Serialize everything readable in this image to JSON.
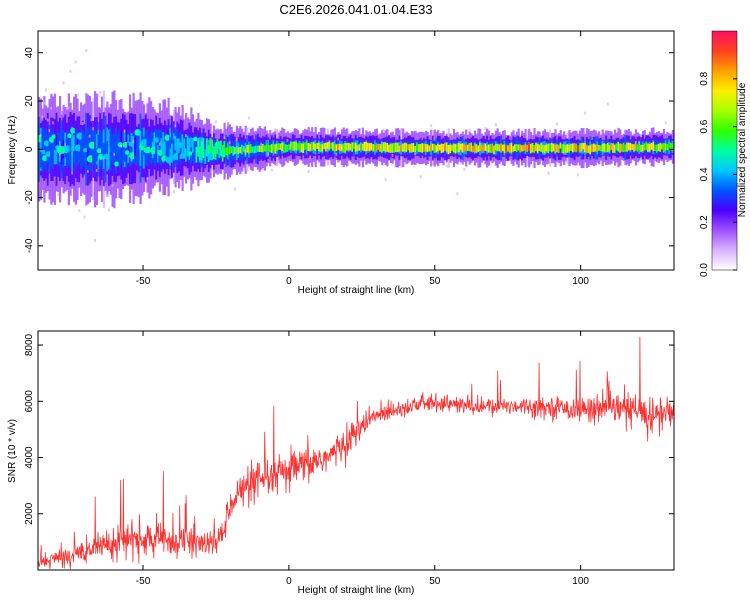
{
  "page": {
    "title": "C2E6.2026.041.01.04.E33"
  },
  "chart_data": [
    {
      "type": "heatmap",
      "title": "C2E6.2026.041.01.04.E33",
      "xlabel": "Height of straight line (km)",
      "ylabel": "Frequency (Hz)",
      "xlim": [
        -86,
        132
      ],
      "ylim": [
        -50,
        49
      ],
      "xticks": [
        -50,
        0,
        50,
        100
      ],
      "yticks": [
        -40,
        -20,
        0,
        20,
        40
      ],
      "grid": false,
      "colorbar": {
        "label": "Normalized spectral amplitude",
        "range": [
          0,
          1
        ],
        "ticks": [
          "0.0",
          "0.2",
          "0.4",
          "0.6",
          "0.8"
        ],
        "colors": [
          "#ffffff",
          "#d9b3ff",
          "#a050ff",
          "#4a00ff",
          "#0055ff",
          "#00c8ff",
          "#00ffa0",
          "#30ff00",
          "#a8ff00",
          "#ffee00",
          "#ffa000",
          "#ff4020",
          "#ff1060"
        ]
      },
      "description_points": [
        {
          "x": -80,
          "f_center": 0,
          "spread": 6,
          "amplitude": 0.35
        },
        {
          "x": -60,
          "f_center": 0,
          "spread": 6,
          "amplitude": 0.35
        },
        {
          "x": -40,
          "f_center": 1,
          "spread": 5,
          "amplitude": 0.4
        },
        {
          "x": -25,
          "f_center": -1,
          "spread": 3,
          "amplitude": 0.55
        },
        {
          "x": 0,
          "f_center": 1,
          "spread": 2,
          "amplitude": 0.7
        },
        {
          "x": 50,
          "f_center": 0.5,
          "spread": 2,
          "amplitude": 0.8
        },
        {
          "x": 100,
          "f_center": 0.5,
          "spread": 2,
          "amplitude": 0.8
        },
        {
          "x": 130,
          "f_center": 1,
          "spread": 2,
          "amplitude": 0.7
        }
      ]
    },
    {
      "type": "line",
      "xlabel": "Height of straight line (km)",
      "ylabel": "SNR (10 * v/v)",
      "xlim": [
        -86,
        132
      ],
      "ylim": [
        0,
        8500
      ],
      "xticks": [
        -50,
        0,
        50,
        100
      ],
      "yticks": [
        2000,
        4000,
        6000,
        8000
      ],
      "grid": false,
      "series": [
        {
          "color": "#ff3030",
          "x": [
            -86,
            -80,
            -75,
            -70,
            -65,
            -60,
            -55,
            -50,
            -45,
            -40,
            -35,
            -30,
            -25,
            -22,
            -20,
            -15,
            -10,
            -5,
            0,
            5,
            10,
            15,
            20,
            25,
            30,
            35,
            40,
            45,
            50,
            55,
            60,
            65,
            70,
            75,
            80,
            85,
            90,
            95,
            100,
            105,
            110,
            115,
            120,
            125,
            130,
            132
          ],
          "values": [
            300,
            400,
            500,
            700,
            900,
            1000,
            1100,
            1050,
            1100,
            1050,
            1000,
            950,
            900,
            1500,
            2500,
            2900,
            3100,
            3300,
            3500,
            3700,
            3900,
            4100,
            4600,
            5100,
            5500,
            5700,
            5800,
            5900,
            5950,
            5900,
            5850,
            5800,
            5800,
            5850,
            5850,
            5800,
            5800,
            5750,
            5700,
            5750,
            5700,
            5750,
            5600,
            5500,
            5600,
            5700
          ],
          "noise": [
            300,
            350,
            400,
            500,
            600,
            650,
            700,
            700,
            700,
            650,
            600,
            550,
            500,
            600,
            700,
            750,
            800,
            800,
            800,
            750,
            700,
            650,
            600,
            550,
            450,
            400,
            350,
            350,
            350,
            350,
            350,
            350,
            350,
            350,
            350,
            400,
            400,
            450,
            500,
            550,
            600,
            650,
            800,
            900,
            700,
            600
          ]
        }
      ]
    }
  ]
}
